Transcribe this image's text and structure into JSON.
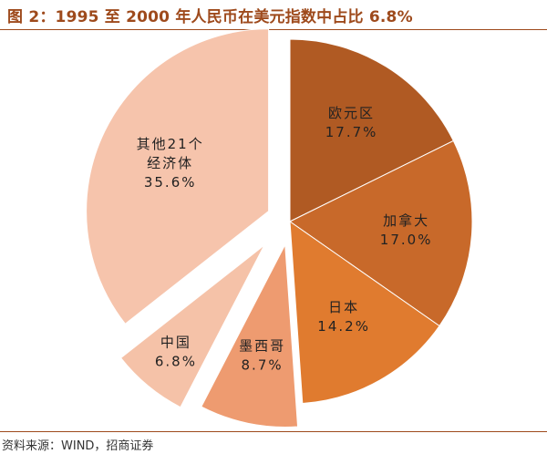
{
  "figure": {
    "title": "图 2：1995 至 2000 年人民币在美元指数中占比 6.8%",
    "source": "资料来源：WIND，招商证券"
  },
  "chart_data": {
    "type": "pie",
    "exploded": [
      "墨西哥",
      "中国",
      "其他21个经济体"
    ],
    "slices": [
      {
        "name": "欧元区",
        "value": 17.7,
        "label": "17.7%",
        "color": "#b05a23"
      },
      {
        "name": "加拿大",
        "value": 17.0,
        "label": "17.0%",
        "color": "#c8692a"
      },
      {
        "name": "日本",
        "value": 14.2,
        "label": "14.2%",
        "color": "#e07b2f"
      },
      {
        "name": "墨西哥",
        "value": 8.7,
        "label": "8.7%",
        "color": "#ee9b70"
      },
      {
        "name": "中国",
        "value": 6.8,
        "label": "6.8%",
        "color": "#f5c2a8"
      },
      {
        "name": "其他21个经济体",
        "label_lines": [
          "其他21个",
          "经济体"
        ],
        "value": 35.6,
        "label": "35.6%",
        "color": "#f6c4ac"
      }
    ]
  }
}
